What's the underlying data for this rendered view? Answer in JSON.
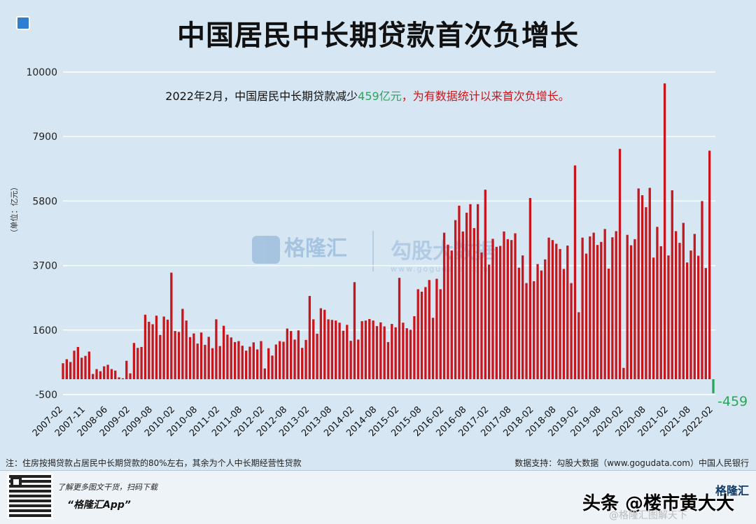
{
  "title": "中国居民中长期贷款首次负增长",
  "annotation": {
    "prefix": "2022年2月，中国居民中长期贷款减少",
    "value": "459亿元",
    "suffix": "，为有数据统计以来首次负增长。"
  },
  "footnote": "注：住房按揭贷款占居民中长期贷款的80%左右，其余为个人中长期经营性贷款",
  "source": "数据支持：勾股大数据（www.gogudata.com）中国人民银行",
  "footer": {
    "line1": "了解更多图文干货，扫码下载",
    "line2": "“格隆汇App”",
    "brand": "格隆汇"
  },
  "watermark": {
    "brand1": "格隆汇",
    "brand2": "勾股大数据",
    "url": "www.gogudata.com"
  },
  "overlay": {
    "text": "头条 @楼市黄大大",
    "sub": "@格隆汇图解天下"
  },
  "colors": {
    "bar": "#c8161d",
    "negative": "#2aa65a",
    "grid": "#ffffff",
    "background": "#d6e6f2"
  },
  "chart_data": {
    "type": "bar",
    "title": "中国居民中长期贷款首次负增长",
    "ylabel": "（单位：亿元）",
    "ylim": [
      -500,
      10000
    ],
    "yticks": [
      -500,
      1600,
      3700,
      5800,
      7900,
      10000
    ],
    "grid": true,
    "x_start": "2007-02",
    "x_end": "2022-02",
    "xtick_labels": [
      "2007-02",
      "2007-11",
      "2008-06",
      "2009-02",
      "2009-08",
      "2010-02",
      "2010-08",
      "2011-02",
      "2011-08",
      "2012-02",
      "2012-08",
      "2013-02",
      "2013-08",
      "2014-02",
      "2014-08",
      "2015-02",
      "2015-08",
      "2016-02",
      "2016-08",
      "2017-02",
      "2017-08",
      "2018-02",
      "2018-08",
      "2019-02",
      "2019-08",
      "2020-02",
      "2020-08",
      "2021-02",
      "2021-08",
      "2022-02"
    ],
    "last_value_label": "-459",
    "values": [
      520,
      650,
      560,
      930,
      1050,
      700,
      760,
      900,
      170,
      330,
      260,
      420,
      470,
      330,
      280,
      60,
      30,
      600,
      190,
      1180,
      1020,
      1050,
      2100,
      1870,
      1790,
      2070,
      1440,
      2040,
      1940,
      3470,
      1570,
      1540,
      2290,
      1910,
      1370,
      1490,
      1160,
      1520,
      1120,
      1380,
      1010,
      1950,
      1080,
      1740,
      1450,
      1360,
      1210,
      1240,
      1090,
      930,
      1060,
      1200,
      970,
      1240,
      350,
      1010,
      770,
      1130,
      1240,
      1220,
      1650,
      1570,
      1290,
      1590,
      1020,
      1280,
      2710,
      1950,
      1480,
      2310,
      2260,
      1950,
      1930,
      1910,
      1840,
      1580,
      1770,
      1250,
      3160,
      1290,
      1890,
      1910,
      1960,
      1910,
      1730,
      1850,
      1720,
      1210,
      1800,
      1690,
      3300,
      1840,
      1660,
      1610,
      2050,
      2930,
      2850,
      3000,
      3230,
      2000,
      3270,
      2930,
      4770,
      4380,
      4190,
      5180,
      5650,
      4810,
      5420,
      5700,
      4920,
      5700,
      4130,
      6170,
      3730,
      4570,
      4310,
      4340,
      4810,
      4560,
      4530,
      4750,
      3630,
      4030,
      3130,
      5900,
      3190,
      3750,
      3540,
      3900,
      4610,
      4530,
      4410,
      4240,
      3590,
      4350,
      3130,
      6960,
      2180,
      4610,
      4090,
      4650,
      4770,
      4370,
      4470,
      4890,
      3600,
      4620,
      4820,
      7500,
      370,
      4700,
      4360,
      4560,
      6210,
      5990,
      5600,
      6230,
      3960,
      4960,
      4330,
      9630,
      4030,
      6150,
      4820,
      4440,
      5090,
      3800,
      4190,
      4730,
      4020,
      5800,
      3620,
      7440,
      -459
    ]
  }
}
